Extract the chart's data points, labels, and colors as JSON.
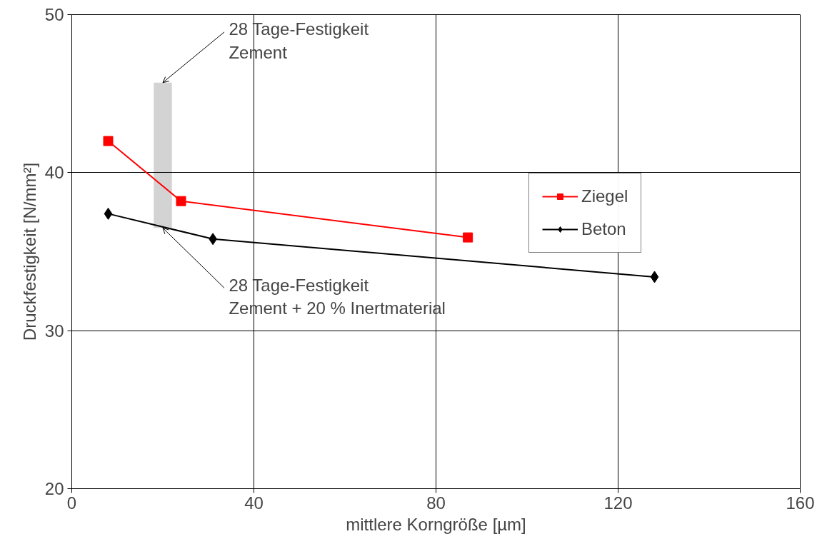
{
  "chart_data": {
    "type": "line",
    "xlabel": "mittlere Korngröße [µm]",
    "ylabel": "Druckfestigkeit [N/mm²]",
    "xlim": [
      0,
      160
    ],
    "xticks": [
      0,
      40,
      80,
      120,
      160
    ],
    "ylim": [
      20,
      50
    ],
    "yticks": [
      20,
      30,
      40,
      50
    ],
    "grid": true,
    "legend": "right",
    "series": [
      {
        "name": "Ziegel",
        "color": "#ff0000",
        "marker": "square",
        "x": [
          8,
          24,
          87
        ],
        "values": [
          42,
          38.2,
          35.9
        ]
      },
      {
        "name": "Beton",
        "color": "#000000",
        "marker": "diamond",
        "x": [
          8,
          31,
          128
        ],
        "values": [
          37.4,
          35.8,
          33.4
        ]
      },
      {
        "type": "bar",
        "color": "#d3d3d3",
        "x": [
          20
        ],
        "base": [
          36.5
        ],
        "values": [
          9.2
        ]
      }
    ],
    "annotations": [
      {
        "text": "28 Tage-Festigkeit\nZement",
        "x": 20,
        "y": 45.7
      },
      {
        "text": "28 Tage-Festigkeit\nZement + 20 % Inertmaterial",
        "x": 20,
        "y": 36.5
      }
    ]
  }
}
